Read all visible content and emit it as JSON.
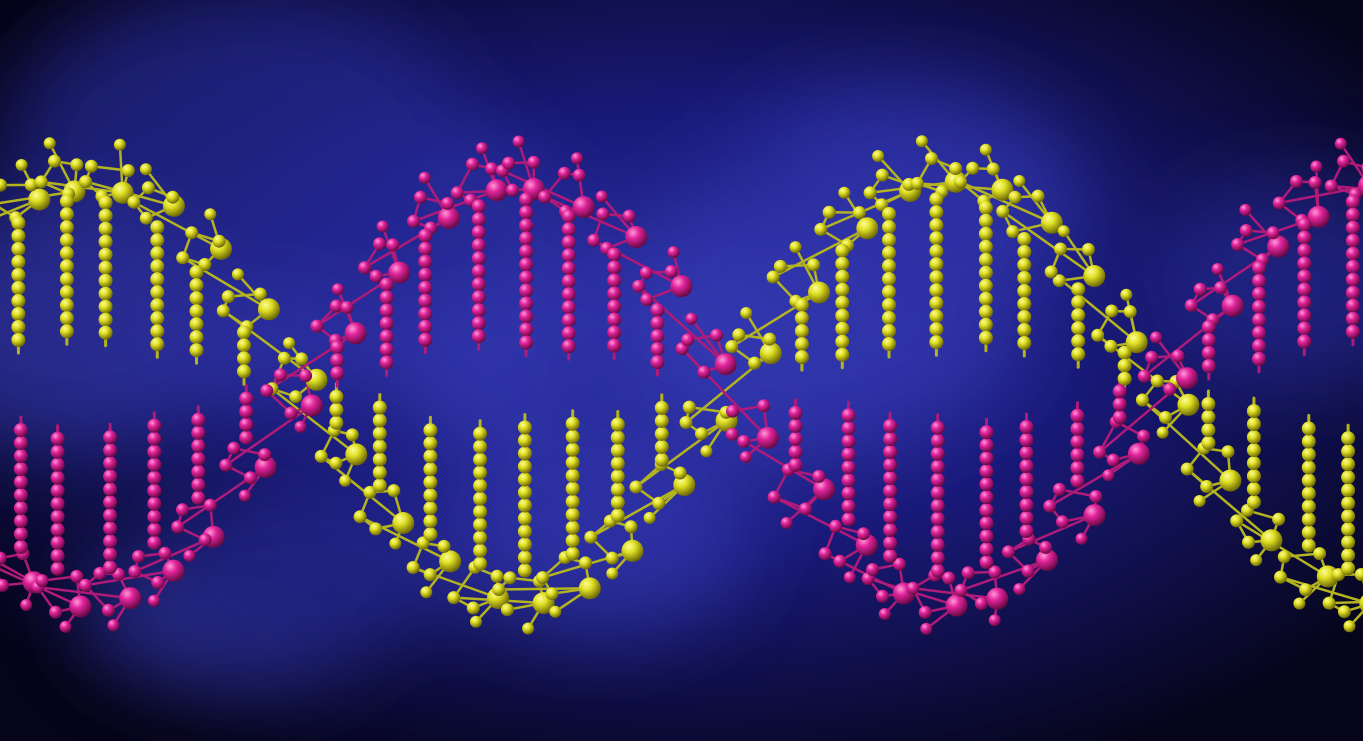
{
  "colors": {
    "background_dark": "#050418",
    "background_mid": "#1a1a7a",
    "background_glow": "#2b2fa0",
    "strand_a": "#e0e024",
    "strand_a_shade": "#6f6a05",
    "strand_b": "#e2249c",
    "strand_b_shade": "#6a0a44",
    "bond_a": "#b4b421",
    "bond_b": "#b01a78"
  },
  "scene": {
    "subject": "dna-double-helix-ball-and-stick",
    "strands": [
      {
        "name": "strand-yellow",
        "color_key": "strand_a",
        "phase": 0
      },
      {
        "name": "strand-magenta",
        "color_key": "strand_b",
        "phase": 3.14159
      }
    ]
  }
}
